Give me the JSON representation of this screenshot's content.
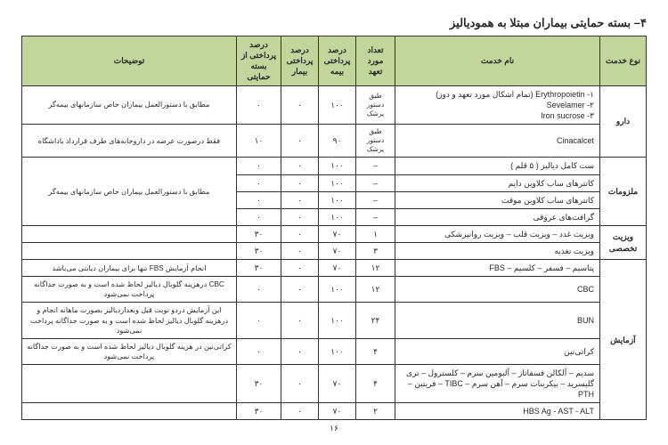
{
  "title": "۴–   بسته حمایتی بیماران مبتلا به همودیالیز",
  "headers": {
    "type": "نوع خدمت",
    "name": "نام خدمت",
    "count": "تعداد مورد تعهد",
    "ins": "درصد پرداختی بیمه",
    "pat": "درصد پرداختی بیمار",
    "sup": "درصد پرداختی از بسته حمایتی",
    "notes": "توضیحات"
  },
  "page_number": "۱۶",
  "groups": [
    {
      "type": "دارو",
      "rows": [
        {
          "name": "۱- Erythropoietin (تمام اشکال مورد تعهد و دوز)\n۲- Sevelamer\n۳- Iron sucrose",
          "count": "طبق دستور پزشک",
          "ins": "۱۰۰",
          "pat": "٠",
          "sup": "٠",
          "notes": "مطابق با دستورالعمل بیماران خاص سازمانهای بیمه‌گر"
        },
        {
          "name": "Cinacalcet",
          "count": "طبق دستور پزشک",
          "ins": "۹۰",
          "pat": "٠",
          "sup": "۱۰",
          "notes": "فقط درصورت عرضه در داروخانه‌های طرف قرارداد باداشگاه"
        }
      ]
    },
    {
      "type": "ملزومات",
      "rows": [
        {
          "name": "ست کامل دیالیز ( ۵ قلم )",
          "count": "–",
          "ins": "۱۰۰",
          "pat": "٠",
          "sup": "٠",
          "notes": "مطابق با دستورالعمل بیماران خاص سازمانهای بیمه‌گر",
          "notes_rowspan": 4
        },
        {
          "name": "کاتترهای ساب کلاوین دایم",
          "count": "–",
          "ins": "۱۰۰",
          "pat": "٠",
          "sup": "٠"
        },
        {
          "name": "کاتترهای ساب کلاوین موقت",
          "count": "–",
          "ins": "۱۰۰",
          "pat": "٠",
          "sup": "٠"
        },
        {
          "name": "گرافت‌های عروقی",
          "count": "–",
          "ins": "۱۰۰",
          "pat": "٠",
          "sup": "٠"
        }
      ]
    },
    {
      "type": "ویزیت تخصصی",
      "rows": [
        {
          "name": "ویزیت غدد – ویزیت قلب – ویزیت روانپزشکی",
          "count": "۱",
          "ins": "۷۰",
          "pat": "٠",
          "sup": "۳۰",
          "notes": ""
        },
        {
          "name": "ویزیت تغذیه",
          "count": "۳",
          "ins": "۷۰",
          "pat": "٠",
          "sup": "۳۰",
          "notes": ""
        }
      ]
    },
    {
      "type": "آزمایش",
      "rows": [
        {
          "name": "پتاسیم – فسفر – کلسیم – FBS",
          "count": "۱۲",
          "ins": "۷۰",
          "pat": "٠",
          "sup": "۳۰",
          "notes": "انجام آزمایش FBS تنها برای بیماران دیابتی می‌باشد"
        },
        {
          "name": "CBC",
          "count": "۱۲",
          "ins": "۱۰۰",
          "pat": "٠",
          "sup": "٠",
          "notes": "CBC درهزینه گلوبال دیالیز لحاظ شده است و به صورت جداگانه پرداخت نمی‌شود"
        },
        {
          "name": "BUN",
          "count": "۲۴",
          "ins": "۱۰۰",
          "pat": "٠",
          "sup": "٠",
          "notes": "این آزمایش دردو نوبت قبل وبعدازدیالیز بصورت ماهانه انجام و درهزینه گلوبال دیالیز لحاظ شده است  و به صورت جداگانه پرداخت نمی‌شود"
        },
        {
          "name": "کراتی‌نین",
          "count": "۴",
          "ins": "۱۰۰",
          "pat": "٠",
          "sup": "٠",
          "notes": "کراتی‌نین در هزینه گلوبال دیالیز لحاظ شده است و به صورت جداگانه پرداخت نمی‌شود"
        },
        {
          "name": "سدیم – آلکالن فسفاتاز – آلبومین سرم – کلسترول – تری گلیسرید – بیکربنات سرم – آهن سرم – TIBC – فریتین – PTH",
          "count": "۴",
          "ins": "۷۰",
          "pat": "٠",
          "sup": "۳۰",
          "notes": ""
        },
        {
          "name": "HBS Ag - AST - ALT",
          "count": "۲",
          "ins": "۷۰",
          "pat": "٠",
          "sup": "۳۰",
          "notes": ""
        }
      ]
    }
  ]
}
